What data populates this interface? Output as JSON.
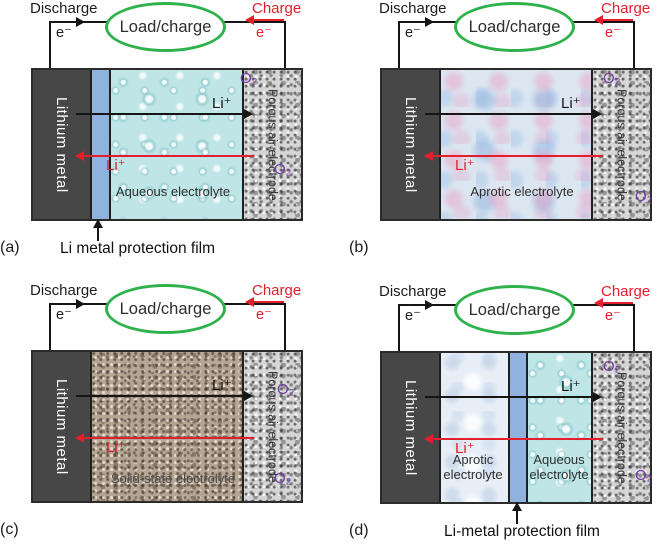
{
  "figure": {
    "shared": {
      "discharge_label": "Discharge",
      "charge_label": "Charge",
      "electron_label": "e⁻",
      "load_charge_label": "Load/charge",
      "lithium_metal_label": "Lithium metal",
      "porous_electrode_label": "Porous air electrode",
      "li_ion_label": "Li⁺",
      "oxygen_label": "O₂"
    },
    "colors": {
      "charge_red": "#e31e2d",
      "load_oval_green": "#2fb24c",
      "oxygen_purple": "#7438a8",
      "lithium_metal_gray": "#474747",
      "protection_film_blue": "#8fb3de"
    },
    "panels": [
      {
        "label": "(a)",
        "electrolyte": "Aqueous electrolyte",
        "annotation": "Li metal protection film"
      },
      {
        "label": "(b)",
        "electrolyte": "Aprotic electrolyte"
      },
      {
        "label": "(c)",
        "electrolyte": "Solid-state electrolyte"
      },
      {
        "label": "(d)",
        "electrolyte_left": "Aprotic\nelectrolyte",
        "electrolyte_right": "Aqueous\nelectrolyte",
        "annotation": "Li-metal protection film"
      }
    ]
  }
}
